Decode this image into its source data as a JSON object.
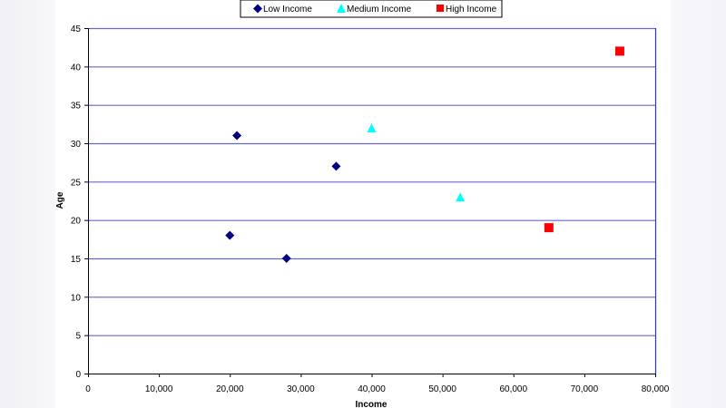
{
  "chart_data": {
    "type": "scatter",
    "title": "",
    "xlabel": "Income",
    "ylabel": "Age",
    "xlim": [
      0,
      80000
    ],
    "ylim": [
      0,
      45
    ],
    "x_ticks": [
      0,
      10000,
      20000,
      30000,
      40000,
      50000,
      60000,
      70000,
      80000
    ],
    "x_tick_labels": [
      "0",
      "10,000",
      "20,000",
      "30,000",
      "40,000",
      "50,000",
      "60,000",
      "70,000",
      "80,000"
    ],
    "y_ticks": [
      0,
      5,
      10,
      15,
      20,
      25,
      30,
      35,
      40,
      45
    ],
    "y_tick_labels": [
      "0",
      "5",
      "10",
      "15",
      "20",
      "25",
      "30",
      "35",
      "40",
      "45"
    ],
    "grid": {
      "horizontal": true,
      "vertical": false,
      "color": "#6666cc"
    },
    "legend": {
      "position": "top",
      "entries": [
        "Low Income",
        "Medium Income",
        "High Income"
      ]
    },
    "series": [
      {
        "name": "Low Income",
        "marker": "diamond",
        "color": "#000080",
        "points": [
          {
            "x": 20000,
            "y": 18
          },
          {
            "x": 21000,
            "y": 31
          },
          {
            "x": 28000,
            "y": 15
          },
          {
            "x": 35000,
            "y": 27
          }
        ]
      },
      {
        "name": "Medium Income",
        "marker": "triangle",
        "color": "#00ffff",
        "points": [
          {
            "x": 40000,
            "y": 32
          },
          {
            "x": 52500,
            "y": 23
          }
        ]
      },
      {
        "name": "High Income",
        "marker": "square",
        "color": "#ff0000",
        "points": [
          {
            "x": 65000,
            "y": 19
          },
          {
            "x": 75000,
            "y": 42
          }
        ]
      }
    ]
  }
}
